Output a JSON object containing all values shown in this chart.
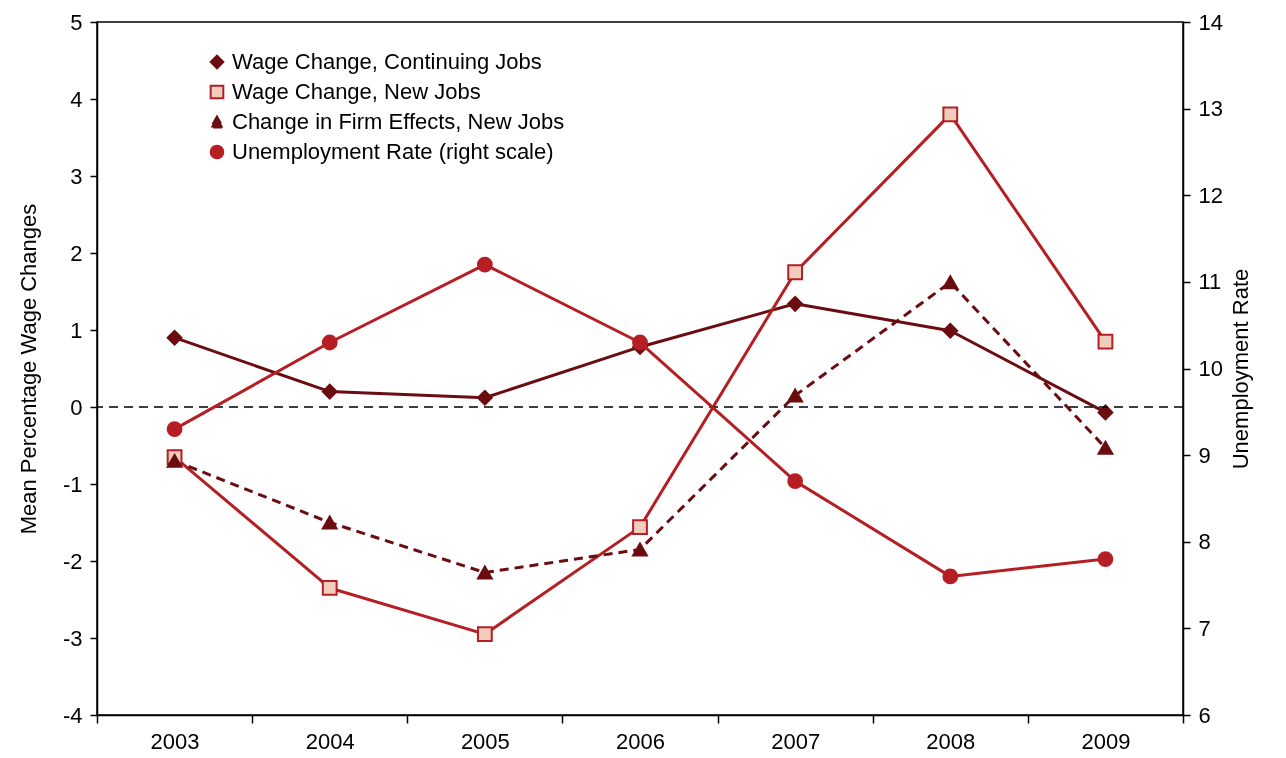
{
  "chart_data": {
    "type": "line",
    "xlabel": null,
    "ylabel": "Mean Percentage Wage Changes",
    "y2label": "Unemployment Rate",
    "categories": [
      "2003",
      "2004",
      "2005",
      "2006",
      "2007",
      "2008",
      "2009"
    ],
    "series": [
      {
        "name": "Wage Change, Continuing Jobs",
        "color": "#6b0c10",
        "marker": "diamond",
        "line_style": "solid",
        "values": [
          0.9,
          0.2,
          0.12,
          0.78,
          1.34,
          0.99,
          -0.07
        ]
      },
      {
        "name": "Wage Change, New Jobs",
        "color": "#b51f24",
        "marker": "square",
        "line_style": "solid",
        "values": [
          -0.65,
          -2.35,
          -2.95,
          -1.56,
          1.75,
          3.8,
          0.85
        ]
      },
      {
        "name": "Change in Firm Effects, New Jobs",
        "color": "#6b0c10",
        "marker": "triangle",
        "line_style": "dashed",
        "values": [
          -0.7,
          -1.5,
          -2.15,
          -1.85,
          0.15,
          1.62,
          -0.53
        ]
      },
      {
        "name": "Unemployment Rate (right scale)",
        "color": "#b51f24",
        "marker": "circle",
        "line_style": "solid",
        "axis": "y2",
        "values": [
          9.3,
          10.3,
          11.2,
          10.3,
          8.7,
          7.6,
          7.8
        ]
      }
    ],
    "ylim": [
      -4,
      5
    ],
    "yticks": [
      -4,
      -3,
      -2,
      -1,
      0,
      1,
      2,
      3,
      4,
      5
    ],
    "y2lim": [
      6,
      14
    ],
    "y2ticks": [
      6,
      7,
      8,
      9,
      10,
      11,
      12,
      13,
      14
    ],
    "ref_lines": [
      {
        "axis": "y",
        "value": 0,
        "color": "#000000",
        "line_style": "dashed"
      }
    ],
    "grid": false,
    "legend": "top left"
  }
}
